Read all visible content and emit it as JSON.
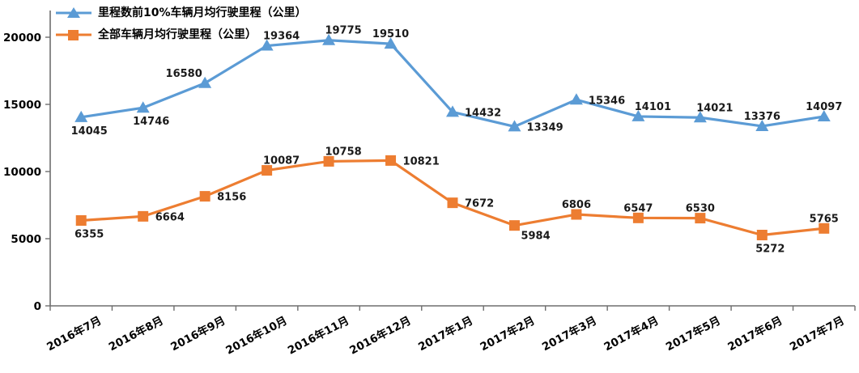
{
  "legend": {
    "items": [
      {
        "label": "里程数前10%车辆月均行驶里程（公里）",
        "marker": "triangle",
        "color": "#5B9BD5"
      },
      {
        "label": "全部车辆月均行驶里程（公里）",
        "marker": "square",
        "color": "#ED7D31"
      }
    ]
  },
  "chart_data": {
    "type": "line",
    "categories": [
      "2016年7月",
      "2016年8月",
      "2016年9月",
      "2016年10月",
      "2016年11月",
      "2016年12月",
      "2017年1月",
      "2017年2月",
      "2017年3月",
      "2017年4月",
      "2017年5月",
      "2017年6月",
      "2017年7月"
    ],
    "series": [
      {
        "name": "里程数前10%车辆月均行驶里程（公里）",
        "color": "#5B9BD5",
        "marker": "triangle",
        "values": [
          14045,
          14746,
          16580,
          19364,
          19775,
          19510,
          14432,
          13349,
          15346,
          14101,
          14021,
          13376,
          14097
        ],
        "label_placement": [
          "below",
          "below",
          "above-left",
          "above-right",
          "above-right",
          "above",
          "right",
          "right",
          "right",
          "above-right",
          "above-right",
          "above",
          "above"
        ]
      },
      {
        "name": "全部车辆月均行驶里程（公里）",
        "color": "#ED7D31",
        "marker": "square",
        "values": [
          6355,
          6664,
          8156,
          10087,
          10758,
          10821,
          7672,
          5984,
          6806,
          6547,
          6530,
          5272,
          5765
        ],
        "label_placement": [
          "below",
          "right",
          "right",
          "above-right",
          "above-right",
          "right",
          "right",
          "below-right",
          "above",
          "above",
          "above",
          "below",
          "above"
        ]
      }
    ],
    "title": "",
    "xlabel": "",
    "ylabel": "",
    "ylim": [
      0,
      20000
    ],
    "yticks": [
      0,
      5000,
      10000,
      15000,
      20000
    ],
    "grid": false,
    "data_labels": true,
    "legend_position": "top-left",
    "axis_color": "#6e6e6e",
    "label_color": "#1a1a1a"
  }
}
